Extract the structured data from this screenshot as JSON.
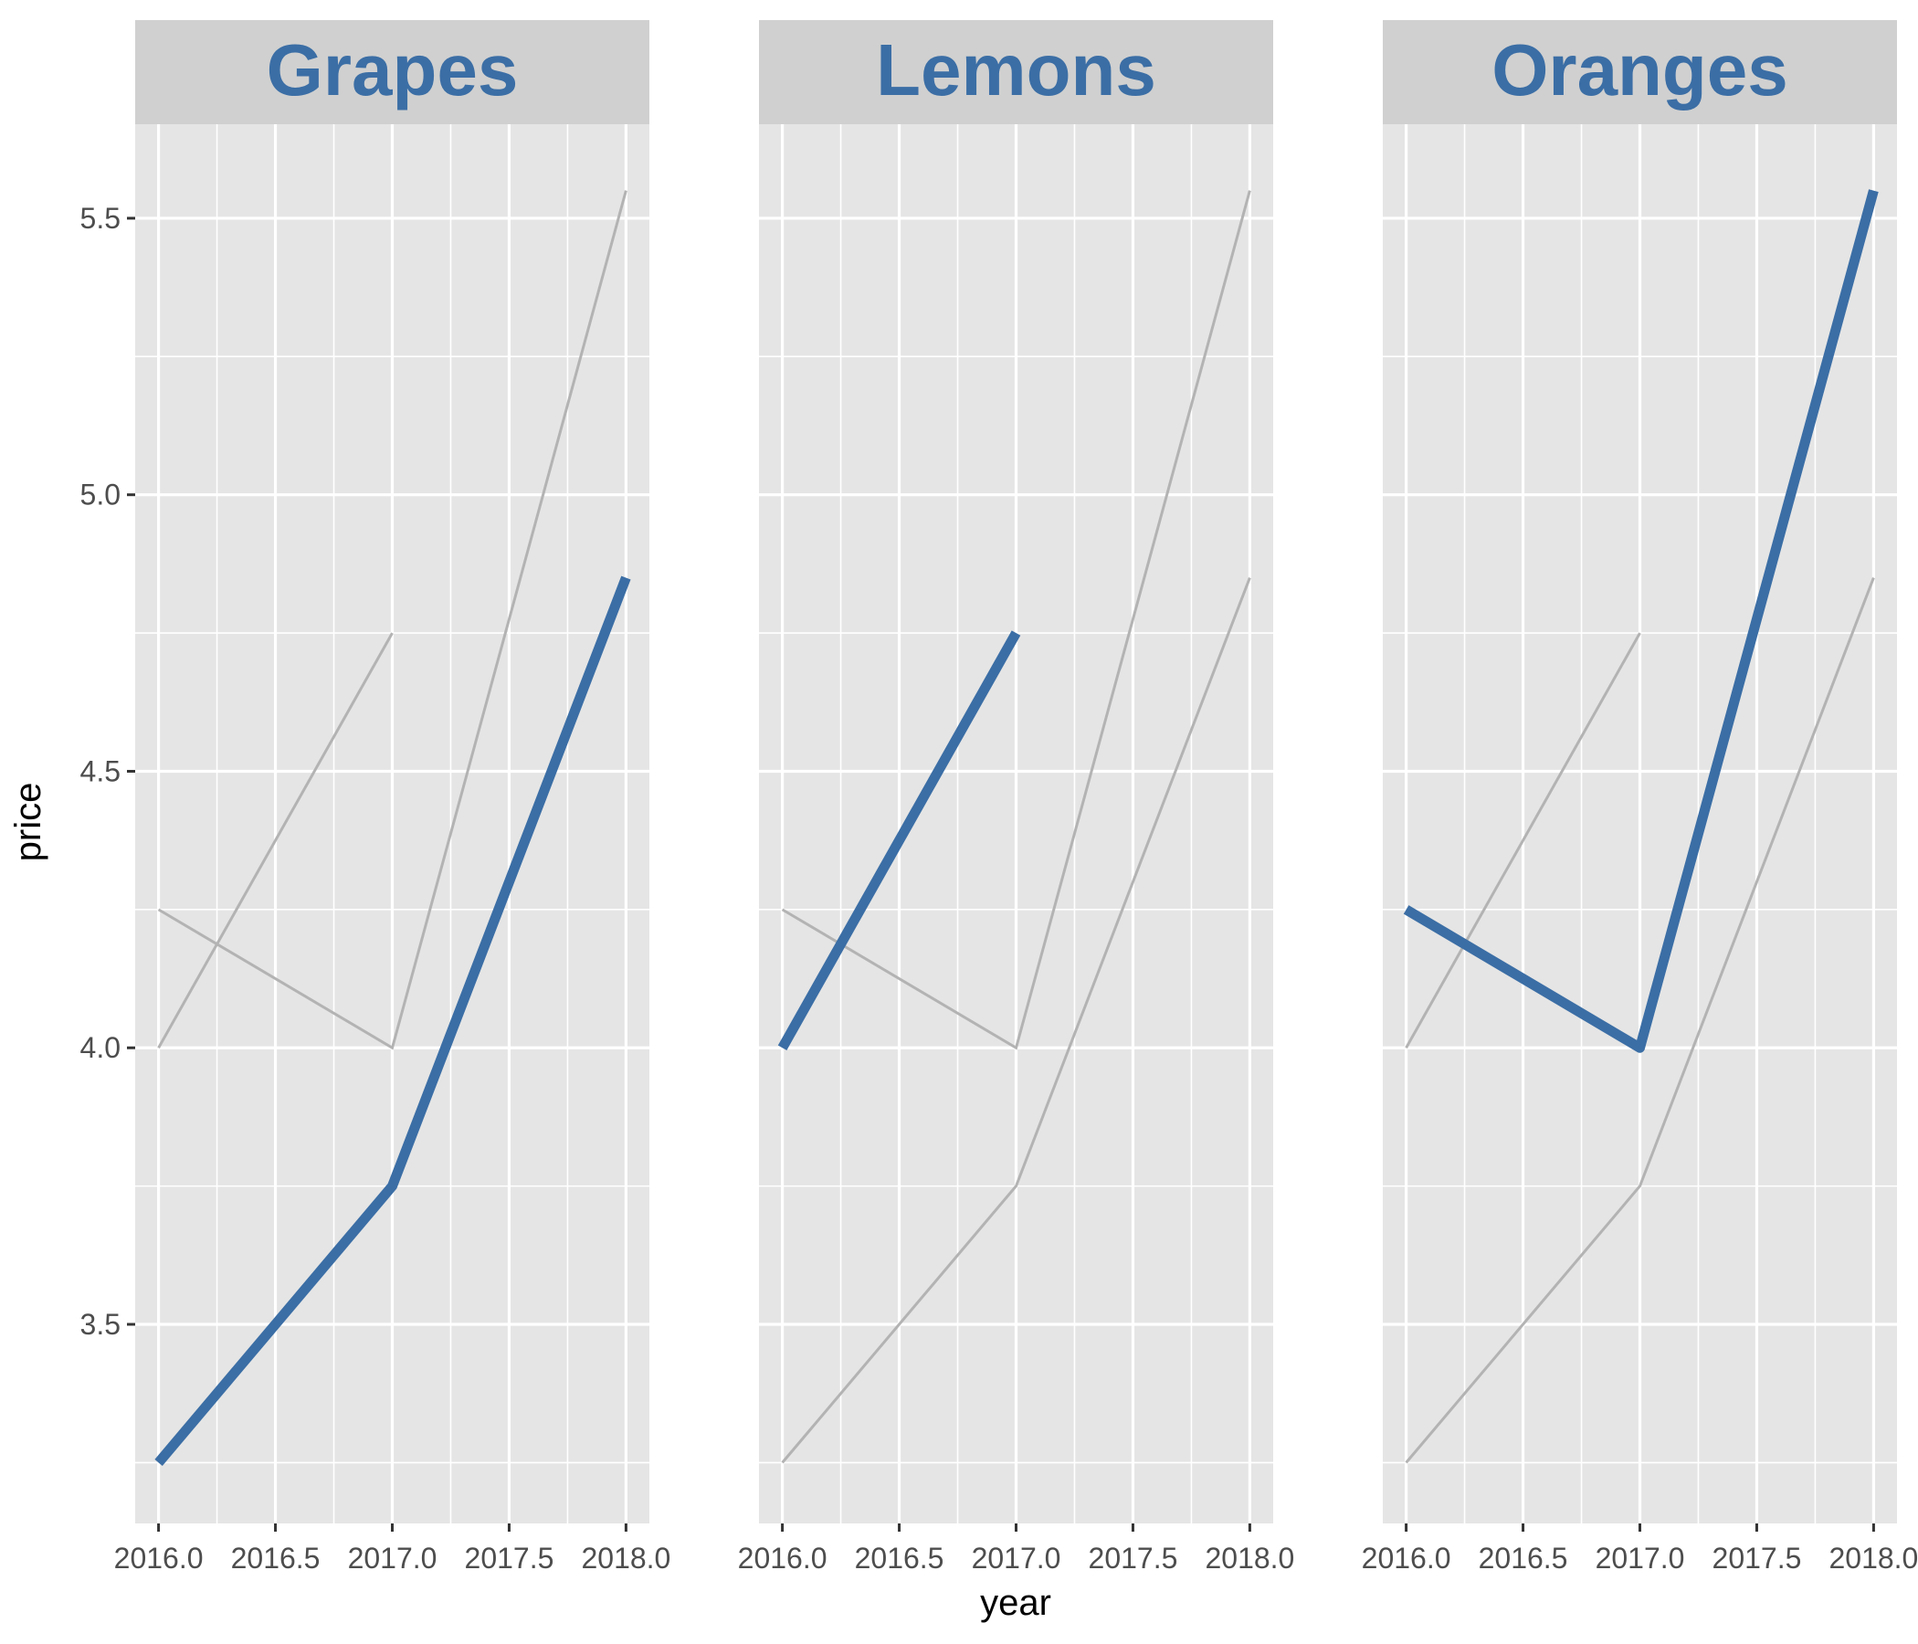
{
  "chart_data": {
    "type": "line",
    "facet_by": "fruit",
    "xlabel": "year",
    "ylabel": "price",
    "xlim": [
      2015.9,
      2018.1
    ],
    "ylim": [
      3.14,
      5.67
    ],
    "x_ticks": [
      2016.0,
      2016.5,
      2017.0,
      2017.5,
      2018.0
    ],
    "x_tick_labels": [
      "2016.0",
      "2016.5",
      "2017.0",
      "2017.5",
      "2018.0"
    ],
    "y_ticks": [
      3.5,
      4.0,
      4.5,
      5.0,
      5.5
    ],
    "y_tick_labels": [
      "3.5",
      "4.0",
      "4.5",
      "5.0",
      "5.5"
    ],
    "grid": true,
    "highlight_color": "#3b6ea5",
    "background_line_color": "#b3b3b3",
    "series": [
      {
        "name": "Grapes",
        "x": [
          2016,
          2017,
          2018
        ],
        "values": [
          3.25,
          3.75,
          4.85
        ]
      },
      {
        "name": "Lemons",
        "x": [
          2016,
          2017
        ],
        "values": [
          4.0,
          4.75
        ]
      },
      {
        "name": "Oranges",
        "x": [
          2016,
          2017,
          2018
        ],
        "values": [
          4.25,
          4.0,
          5.55
        ]
      }
    ],
    "panels": [
      "Grapes",
      "Lemons",
      "Oranges"
    ]
  }
}
